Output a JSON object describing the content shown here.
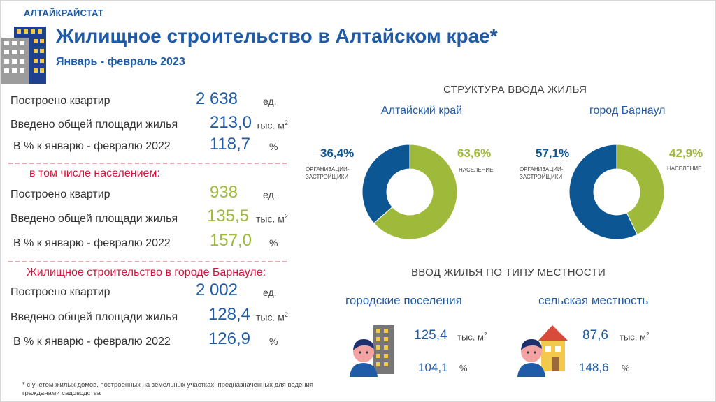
{
  "header": {
    "org": "АЛТАЙКРАЙСТАТ",
    "title": "Жилищное строительство в Алтайском крае*",
    "subtitle": "Январь - февраль 2023"
  },
  "totals": {
    "rows": [
      {
        "label": "Построено квартир",
        "value": "2 638",
        "unit": "ед."
      },
      {
        "label": "Введено общей площади жилья",
        "value": "213,0",
        "unit": "тыс. м",
        "unit_sup": "2"
      },
      {
        "label": "В % к январю - февралю 2022",
        "value": "118,7",
        "unit": "%"
      }
    ]
  },
  "population": {
    "heading": "в том числе населением:",
    "rows": [
      {
        "label": "Построено квартир",
        "value": "938",
        "unit": "ед."
      },
      {
        "label": "Введено общей площади жилья",
        "value": "135,5",
        "unit": "тыс. м",
        "unit_sup": "2"
      },
      {
        "label": "В % к январю - февралю 2022",
        "value": "157,0",
        "unit": "%"
      }
    ]
  },
  "barnaul": {
    "heading": "Жилищное строительство в городе Барнауле:",
    "rows": [
      {
        "label": "Построено квартир",
        "value": "2 002",
        "unit": "ед."
      },
      {
        "label": "Введено общей площади жилья",
        "value": "128,4",
        "unit": "тыс. м",
        "unit_sup": "2"
      },
      {
        "label": "В % к январю - февралю 2022",
        "value": "126,9",
        "unit": "%"
      }
    ]
  },
  "structure": {
    "heading": "СТРУКТУРА ВВОДА ЖИЛЬЯ",
    "org_label_line1": "ОРГАНИЗАЦИИ-",
    "org_label_line2": "ЗАСТРОЙЩИКИ",
    "pop_label": "НАСЕЛЕНИЕ"
  },
  "colors": {
    "blue": "#0d5694",
    "green": "#9fba3a",
    "title_blue": "#1f5ba6",
    "red": "#d4143c"
  },
  "chart_data": [
    {
      "type": "pie",
      "title": "Алтайский край",
      "categories": [
        "ОРГАНИЗАЦИИ-ЗАСТРОЙЩИКИ",
        "НАСЕЛЕНИЕ"
      ],
      "values": [
        36.4,
        63.6
      ],
      "labels": [
        "36,4%",
        "63,6%"
      ],
      "colors": [
        "#0d5694",
        "#9fba3a"
      ]
    },
    {
      "type": "pie",
      "title": "город Барнаул",
      "categories": [
        "ОРГАНИЗАЦИИ-ЗАСТРОЙЩИКИ",
        "НАСЕЛЕНИЕ"
      ],
      "values": [
        57.1,
        42.9
      ],
      "labels": [
        "57,1%",
        "42,9%"
      ],
      "colors": [
        "#0d5694",
        "#9fba3a"
      ]
    }
  ],
  "areas": {
    "heading": "ВВОД ЖИЛЬЯ ПО ТИПУ МЕСТНОСТИ",
    "urban": {
      "label": "городские поселения",
      "value": "125,4",
      "unit": "тыс. м",
      "unit_sup": "2",
      "percent": "104,1",
      "percent_unit": "%"
    },
    "rural": {
      "label": "сельская местность",
      "value": "87,6",
      "unit": "тыс. м",
      "unit_sup": "2",
      "percent": "148,6",
      "percent_unit": "%"
    }
  },
  "footnote": "* с учетом жилых домов, построенных на земельных участках, предназначенных для ведения гражданами садоводства"
}
